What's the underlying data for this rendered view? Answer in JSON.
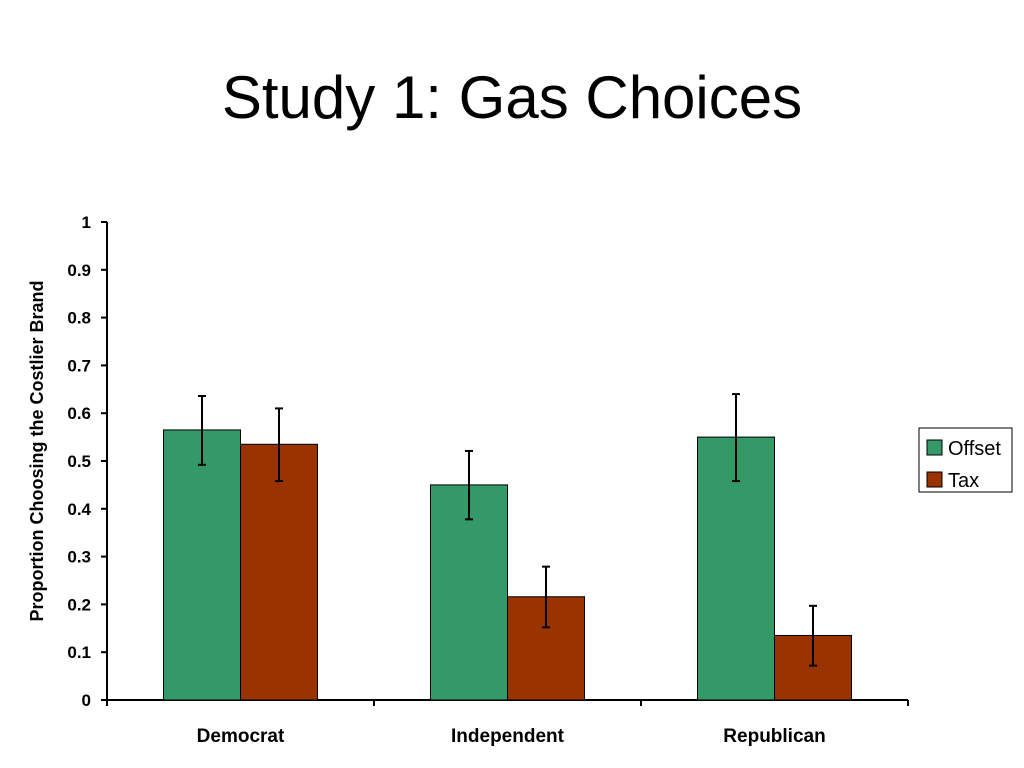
{
  "slide": {
    "title": "Study 1: Gas Choices"
  },
  "chart_data": {
    "type": "bar",
    "title": "Study 1: Gas Choices",
    "xlabel": "",
    "ylabel": "Proportion Choosing the Costlier Brand",
    "ylim": [
      0,
      1
    ],
    "yticks": [
      "0",
      "0.1",
      "0.2",
      "0.3",
      "0.4",
      "0.5",
      "0.6",
      "0.7",
      "0.8",
      "0.9",
      "1"
    ],
    "categories": [
      "Democrat",
      "Independent",
      "Republican"
    ],
    "series": [
      {
        "name": "Offset",
        "color": "#339966",
        "values": [
          0.565,
          0.45,
          0.55
        ],
        "error_low": [
          0.492,
          0.378,
          0.458
        ],
        "error_high": [
          0.636,
          0.521,
          0.64
        ]
      },
      {
        "name": "Tax",
        "color": "#993300",
        "values": [
          0.535,
          0.216,
          0.135
        ],
        "error_low": [
          0.458,
          0.152,
          0.072
        ],
        "error_high": [
          0.61,
          0.279,
          0.197
        ]
      }
    ],
    "legend": {
      "position": "right",
      "entries": [
        "Offset",
        "Tax"
      ]
    },
    "grid": false
  }
}
